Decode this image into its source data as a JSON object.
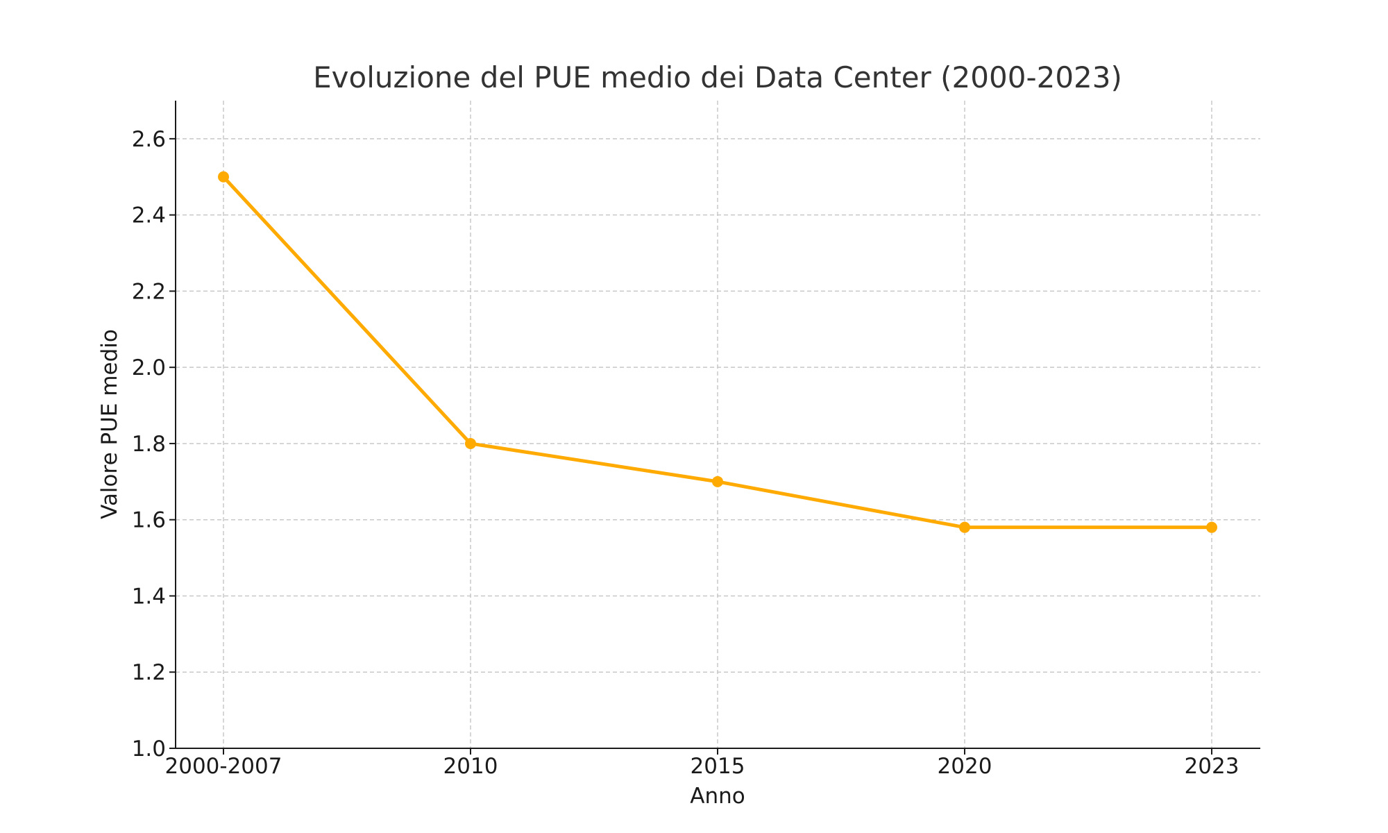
{
  "chart_data": {
    "type": "line",
    "title": "Evoluzione del PUE medio dei Data Center (2000-2023)",
    "xlabel": "Anno",
    "ylabel": "Valore PUE medio",
    "categories": [
      "2000-2007",
      "2010",
      "2015",
      "2020",
      "2023"
    ],
    "series": [
      {
        "values": [
          2.5,
          1.8,
          1.7,
          1.58,
          1.58
        ],
        "color": "#FFAA00",
        "marker": "circle"
      }
    ],
    "ylim": [
      1.0,
      2.7
    ],
    "yticks": [
      1.0,
      1.2,
      1.4,
      1.6,
      1.8,
      2.0,
      2.2,
      2.4,
      2.6
    ],
    "ytick_labels": [
      "1.0",
      "1.2",
      "1.4",
      "1.6",
      "1.8",
      "2.0",
      "2.2",
      "2.4",
      "2.6"
    ],
    "grid": true,
    "grid_style": "dashed",
    "legend": "none"
  }
}
